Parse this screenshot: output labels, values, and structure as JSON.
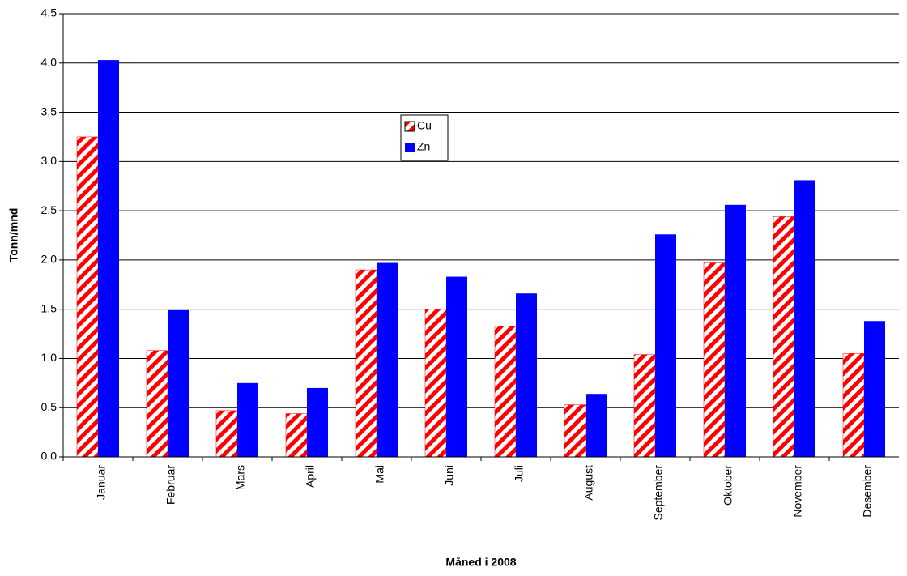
{
  "chart_data": {
    "type": "bar",
    "x_label": "Måned i 2008",
    "y_label": "Tonn/mnd",
    "categories": [
      "Januar",
      "Februar",
      "Mars",
      "April",
      "Mai",
      "Juni",
      "Juli",
      "August",
      "September",
      "Oktober",
      "November",
      "Desember"
    ],
    "series": [
      {
        "name": "Cu",
        "color": "#ff0000",
        "values": [
          3.25,
          1.08,
          0.47,
          0.44,
          1.9,
          1.5,
          1.33,
          0.53,
          1.04,
          1.97,
          2.44,
          1.05
        ]
      },
      {
        "name": "Zn",
        "color": "#0000ff",
        "values": [
          4.03,
          1.49,
          0.75,
          0.7,
          1.97,
          1.83,
          1.66,
          0.64,
          2.26,
          2.56,
          2.81,
          1.38
        ]
      }
    ],
    "ylim": [
      0,
      4.5
    ],
    "yticks": [
      {
        "value": 0,
        "label": "0,0"
      },
      {
        "value": 0.5,
        "label": "0,5"
      },
      {
        "value": 1,
        "label": "1,0"
      },
      {
        "value": 1.5,
        "label": "1,5"
      },
      {
        "value": 2,
        "label": "2,0"
      },
      {
        "value": 2.5,
        "label": "2,5"
      },
      {
        "value": 3,
        "label": "3,0"
      },
      {
        "value": 3.5,
        "label": "3,5"
      },
      {
        "value": 4,
        "label": "4,0"
      },
      {
        "value": 4.5,
        "label": "4,5"
      }
    ],
    "grid": true
  }
}
